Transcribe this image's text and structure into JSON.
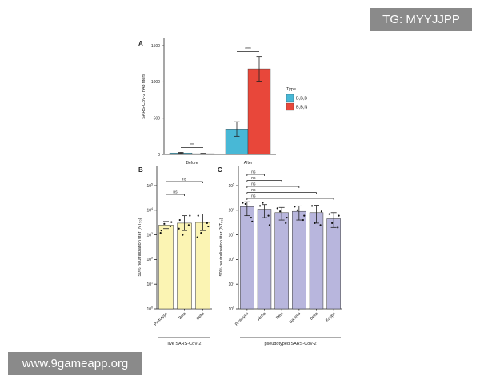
{
  "watermarks": {
    "top_right": "TG: MYYJJPP",
    "bottom_left": "www.9gameapp.org"
  },
  "colors": {
    "bbb": "#48b8d6",
    "bbn": "#e8473a",
    "live": "#fbf4b3",
    "pseudo": "#b8b6dd"
  },
  "chart_data": [
    {
      "panel": "A",
      "type": "bar",
      "ylabel": "SARS-CoV-2 nAb titers",
      "categories": [
        "Before",
        "After"
      ],
      "ylim": [
        0,
        1600
      ],
      "yticks": [
        0,
        500,
        1000,
        1500
      ],
      "legend": {
        "title": "Type",
        "placement": "right"
      },
      "series": [
        {
          "name": "B,B,B",
          "values": [
            20,
            350
          ],
          "err": [
            8,
            100
          ]
        },
        {
          "name": "B,B,N",
          "values": [
            10,
            1180
          ],
          "err": [
            5,
            170
          ]
        }
      ],
      "significance": [
        {
          "group": "Before",
          "label": "**"
        },
        {
          "group": "After",
          "label": "****"
        }
      ]
    },
    {
      "panel": "B",
      "type": "bar",
      "scale": "log",
      "ylabel": "50% neutralization titer (NT50)",
      "ylim": [
        1,
        100000
      ],
      "yticks": [
        "10^0",
        "10^1",
        "10^2",
        "10^3",
        "10^4",
        "10^5"
      ],
      "group_label": "live SARS-CoV-2",
      "categories": [
        "Prototype",
        "Beta",
        "Delta"
      ],
      "values": [
        2500,
        3000,
        3200
      ],
      "err_low": [
        1800,
        1500,
        1500
      ],
      "err_high": [
        3500,
        6000,
        7000
      ],
      "points": [
        [
          1500,
          2200,
          2800,
          3300,
          1200
        ],
        [
          4000,
          2500,
          1000,
          6000,
          1800
        ],
        [
          6000,
          3000,
          1200,
          2200,
          800
        ]
      ],
      "significance": [
        {
          "from": "Prototype",
          "to": "Beta",
          "label": "ns"
        },
        {
          "from": "Prototype",
          "to": "Delta",
          "label": "ns"
        }
      ]
    },
    {
      "panel": "C",
      "type": "bar",
      "scale": "log",
      "ylabel": "50% neutralization titer (NT50)",
      "ylim": [
        1,
        100000
      ],
      "yticks": [
        "10^0",
        "10^1",
        "10^2",
        "10^3",
        "10^4",
        "10^5"
      ],
      "group_label": "pseudotyped SARS-CoV-2",
      "categories": [
        "Prototype",
        "Alpha",
        "Beta",
        "Gamma",
        "Delta",
        "Kappa"
      ],
      "values": [
        14000,
        11000,
        8000,
        9000,
        8000,
        4500
      ],
      "err_low": [
        6000,
        5000,
        4000,
        4000,
        3000,
        2000
      ],
      "err_high": [
        22000,
        17000,
        13000,
        15000,
        16000,
        8000
      ],
      "points": [
        [
          20000,
          5000,
          18000,
          3500
        ],
        [
          15000,
          6000,
          20000,
          2500
        ],
        [
          12000,
          3000,
          9000,
          5000
        ],
        [
          14000,
          4000,
          10000,
          6000
        ],
        [
          15000,
          2500,
          3000,
          9000
        ],
        [
          7000,
          2000,
          3000,
          6000
        ]
      ],
      "significance": [
        {
          "from": "Prototype",
          "to": "Alpha",
          "label": "ns"
        },
        {
          "from": "Prototype",
          "to": "Beta",
          "label": "ns"
        },
        {
          "from": "Prototype",
          "to": "Gamma",
          "label": "ns"
        },
        {
          "from": "Prototype",
          "to": "Delta",
          "label": "ns"
        },
        {
          "from": "Prototype",
          "to": "Kappa",
          "label": "ns"
        }
      ]
    }
  ]
}
